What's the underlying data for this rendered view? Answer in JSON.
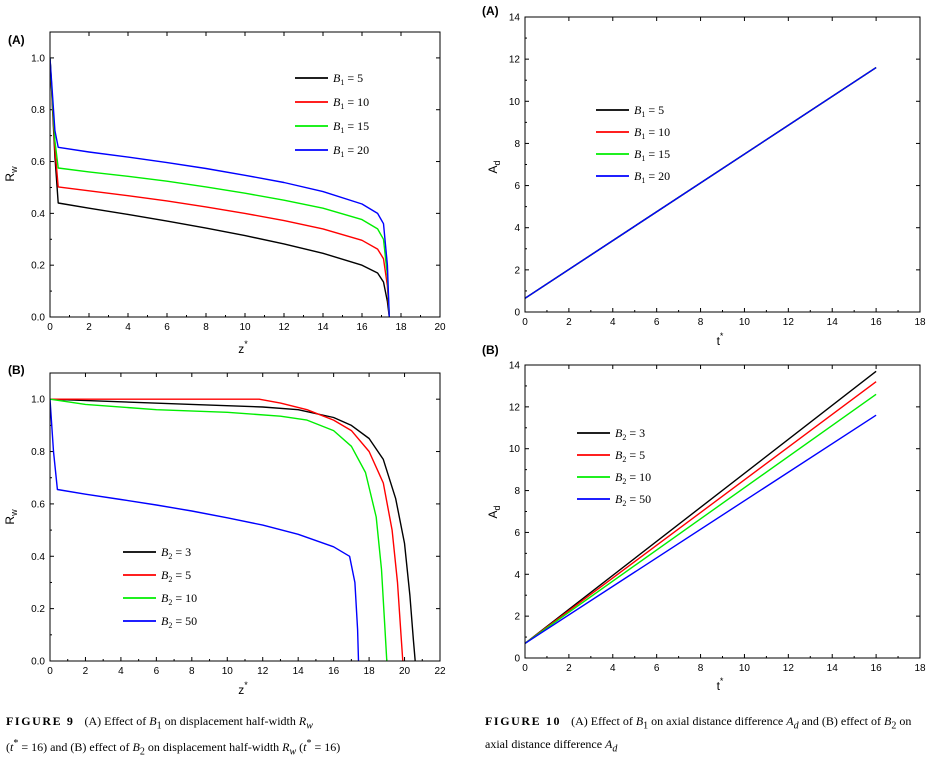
{
  "chart_data": [
    {
      "id": "fig9a",
      "type": "line",
      "panel_label": "(A)",
      "xlabel": "z",
      "xlabel_sup": "*",
      "ylabel": "R",
      "ylabel_sub": "w",
      "xlim": [
        0,
        20
      ],
      "ylim": [
        0,
        1.1
      ],
      "xticks": [
        "0",
        "2",
        "4",
        "6",
        "8",
        "10",
        "12",
        "14",
        "16",
        "18",
        "20"
      ],
      "yticks": [
        "0.0",
        "0.2",
        "0.4",
        "0.6",
        "0.8",
        "1.0"
      ],
      "legend_position": "upper-right",
      "legend_var": "B",
      "legend_sub": "1",
      "series": [
        {
          "name": "B1 = 5",
          "label_value": "= 5",
          "color": "#000000",
          "x": [
            0,
            0.25,
            0.42,
            2,
            4,
            6,
            8,
            10,
            12,
            14,
            16,
            16.8,
            17.1,
            17.3,
            17.4
          ],
          "y": [
            1.0,
            0.62,
            0.44,
            0.42,
            0.396,
            0.37,
            0.343,
            0.314,
            0.282,
            0.246,
            0.2,
            0.17,
            0.135,
            0.06,
            0.0
          ]
        },
        {
          "name": "B1 = 10",
          "label_value": "= 10",
          "color": "#ff0000",
          "x": [
            0,
            0.25,
            0.42,
            2,
            4,
            6,
            8,
            10,
            12,
            14,
            16,
            16.8,
            17.1,
            17.3,
            17.4
          ],
          "y": [
            1.0,
            0.65,
            0.502,
            0.487,
            0.468,
            0.448,
            0.425,
            0.4,
            0.372,
            0.34,
            0.296,
            0.262,
            0.225,
            0.12,
            0.0
          ]
        },
        {
          "name": "B1 = 15",
          "label_value": "= 15",
          "color": "#00ee00",
          "x": [
            0,
            0.25,
            0.42,
            2,
            4,
            6,
            8,
            10,
            12,
            14,
            16,
            16.8,
            17.1,
            17.3,
            17.4
          ],
          "y": [
            1.0,
            0.68,
            0.575,
            0.56,
            0.543,
            0.524,
            0.502,
            0.478,
            0.451,
            0.42,
            0.376,
            0.34,
            0.3,
            0.16,
            0.0
          ]
        },
        {
          "name": "B1 = 20",
          "label_value": "= 20",
          "color": "#0000ff",
          "x": [
            0,
            0.25,
            0.42,
            2,
            4,
            6,
            8,
            10,
            12,
            14,
            16,
            16.8,
            17.1,
            17.3,
            17.4
          ],
          "y": [
            1.0,
            0.72,
            0.655,
            0.637,
            0.617,
            0.596,
            0.573,
            0.547,
            0.519,
            0.484,
            0.436,
            0.4,
            0.36,
            0.2,
            0.0
          ]
        }
      ]
    },
    {
      "id": "fig9b",
      "type": "line",
      "panel_label": "(B)",
      "xlabel": "z",
      "xlabel_sup": "*",
      "ylabel": "R",
      "ylabel_sub": "w",
      "xlim": [
        0,
        22
      ],
      "ylim": [
        0,
        1.1
      ],
      "xticks": [
        "0",
        "2",
        "4",
        "6",
        "8",
        "10",
        "12",
        "14",
        "16",
        "18",
        "20",
        "22"
      ],
      "yticks": [
        "0.0",
        "0.2",
        "0.4",
        "0.6",
        "0.8",
        "1.0"
      ],
      "legend_position": "lower-left",
      "legend_var": "B",
      "legend_sub": "2",
      "series": [
        {
          "name": "B2 = 3",
          "label_value": "= 3",
          "color": "#000000",
          "x": [
            0,
            4,
            8,
            12,
            14,
            16,
            17,
            18,
            18.8,
            19.5,
            20,
            20.3,
            20.5,
            20.6
          ],
          "y": [
            1.0,
            0.99,
            0.98,
            0.97,
            0.96,
            0.93,
            0.9,
            0.85,
            0.77,
            0.62,
            0.45,
            0.25,
            0.08,
            0.0
          ]
        },
        {
          "name": "B2 = 5",
          "label_value": "= 5",
          "color": "#ff0000",
          "x": [
            0,
            4,
            8,
            11.8,
            13,
            14.5,
            16,
            17,
            18,
            18.8,
            19.3,
            19.6,
            19.8,
            19.9
          ],
          "y": [
            1.0,
            1.0,
            1.0,
            1.0,
            0.985,
            0.96,
            0.92,
            0.88,
            0.8,
            0.68,
            0.5,
            0.3,
            0.1,
            0.0
          ]
        },
        {
          "name": "B2 = 10",
          "label_value": "= 10",
          "color": "#00ee00",
          "x": [
            0,
            2,
            6,
            10,
            13,
            14.5,
            16,
            17,
            17.8,
            18.4,
            18.7,
            18.9,
            19.0
          ],
          "y": [
            1.0,
            0.98,
            0.96,
            0.95,
            0.935,
            0.92,
            0.88,
            0.82,
            0.72,
            0.55,
            0.35,
            0.12,
            0.0
          ]
        },
        {
          "name": "B2 = 50",
          "label_value": "= 50",
          "color": "#0000ff",
          "x": [
            0,
            0.2,
            0.42,
            2,
            4,
            6,
            8,
            10,
            12,
            14,
            16,
            16.9,
            17.2,
            17.35,
            17.4
          ],
          "y": [
            1.0,
            0.8,
            0.655,
            0.637,
            0.617,
            0.596,
            0.573,
            0.547,
            0.519,
            0.484,
            0.436,
            0.4,
            0.3,
            0.12,
            0.0
          ]
        }
      ]
    },
    {
      "id": "fig10a",
      "type": "line",
      "panel_label": "(A)",
      "xlabel": "t",
      "xlabel_sup": "*",
      "ylabel": "A",
      "ylabel_sub": "d",
      "xlim": [
        0,
        18
      ],
      "ylim": [
        0,
        14
      ],
      "xticks": [
        "0",
        "2",
        "4",
        "6",
        "8",
        "10",
        "12",
        "14",
        "16",
        "18"
      ],
      "yticks": [
        "0",
        "2",
        "4",
        "6",
        "8",
        "10",
        "12",
        "14"
      ],
      "legend_position": "center-left",
      "legend_var": "B",
      "legend_sub": "1",
      "series": [
        {
          "name": "B1 = 5",
          "label_value": "= 5",
          "color": "#000000",
          "x": [
            0,
            16
          ],
          "y": [
            0.65,
            11.6
          ]
        },
        {
          "name": "B1 = 10",
          "label_value": "= 10",
          "color": "#ff0000",
          "x": [
            0,
            16
          ],
          "y": [
            0.65,
            11.6
          ]
        },
        {
          "name": "B1 = 15",
          "label_value": "= 15",
          "color": "#00ee00",
          "x": [
            0,
            16
          ],
          "y": [
            0.65,
            11.6
          ]
        },
        {
          "name": "B1 = 20",
          "label_value": "= 20",
          "color": "#0000ff",
          "x": [
            0,
            16
          ],
          "y": [
            0.65,
            11.6
          ]
        }
      ]
    },
    {
      "id": "fig10b",
      "type": "line",
      "panel_label": "(B)",
      "xlabel": "t",
      "xlabel_sup": "*",
      "ylabel": "A",
      "ylabel_sub": "d",
      "xlim": [
        0,
        18
      ],
      "ylim": [
        0,
        14
      ],
      "xticks": [
        "0",
        "2",
        "4",
        "6",
        "8",
        "10",
        "12",
        "14",
        "16",
        "18"
      ],
      "yticks": [
        "0",
        "2",
        "4",
        "6",
        "8",
        "10",
        "12",
        "14"
      ],
      "legend_position": "upper-left",
      "legend_var": "B",
      "legend_sub": "2",
      "series": [
        {
          "name": "B2 = 3",
          "label_value": "= 3",
          "color": "#000000",
          "x": [
            0,
            16
          ],
          "y": [
            0.7,
            13.7
          ]
        },
        {
          "name": "B2 = 5",
          "label_value": "= 5",
          "color": "#ff0000",
          "x": [
            0,
            16
          ],
          "y": [
            0.7,
            13.2
          ]
        },
        {
          "name": "B2 = 10",
          "label_value": "= 10",
          "color": "#00ee00",
          "x": [
            0,
            16
          ],
          "y": [
            0.7,
            12.6
          ]
        },
        {
          "name": "B2 = 50",
          "label_value": "= 50",
          "color": "#0000ff",
          "x": [
            0,
            16
          ],
          "y": [
            0.7,
            11.6
          ]
        }
      ]
    }
  ],
  "captions": {
    "fig9": {
      "label": "FIGURE 9",
      "t1": "(A) Effect of ",
      "v1": "B",
      "v1_sub": "1",
      "t2": " on displacement half-width ",
      "v2": "R",
      "v2_sub": "w",
      "t3": "(",
      "t4": " = 16) and (B) effect of ",
      "v3": "B",
      "v3_sub": "2",
      "t5": " on displacement half-width ",
      "v4": "R",
      "v4_sub": "w",
      "t6": " (",
      "t7": " = 16)",
      "tstar": "t",
      "tstar_sup": "*"
    },
    "fig10": {
      "label": "FIGURE 10",
      "t1": "(A) Effect of ",
      "v1": "B",
      "v1_sub": "1",
      "t2": " on axial distance difference ",
      "v2": "A",
      "v2_sub": "d",
      "t3": " and (B) effect of ",
      "v3": "B",
      "v3_sub": "2",
      "t4": " on axial distance difference ",
      "v4": "A",
      "v4_sub": "d"
    }
  }
}
